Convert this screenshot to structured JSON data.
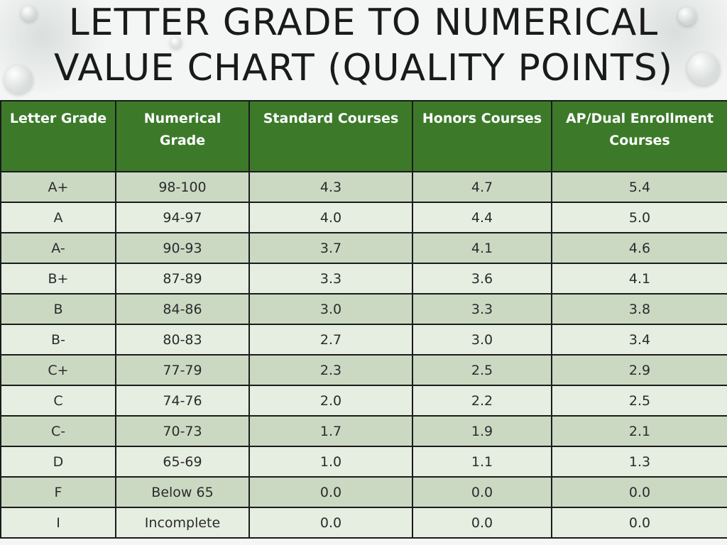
{
  "title_lines": [
    "LETTER GRADE TO NUMERICAL",
    "VALUE CHART (QUALITY POINTS)"
  ],
  "table": {
    "headers": [
      "Letter Grade",
      "Numerical Grade",
      "Standard Courses",
      "Honors Courses",
      "AP/Dual Enrollment Courses"
    ],
    "rows": [
      [
        "A+",
        "98-100",
        "4.3",
        "4.7",
        "5.4"
      ],
      [
        "A",
        "94-97",
        "4.0",
        "4.4",
        "5.0"
      ],
      [
        "A-",
        "90-93",
        "3.7",
        "4.1",
        "4.6"
      ],
      [
        "B+",
        "87-89",
        "3.3",
        "3.6",
        "4.1"
      ],
      [
        "B",
        "84-86",
        "3.0",
        "3.3",
        "3.8"
      ],
      [
        "B-",
        "80-83",
        "2.7",
        "3.0",
        "3.4"
      ],
      [
        "C+",
        "77-79",
        "2.3",
        "2.5",
        "2.9"
      ],
      [
        "C",
        "74-76",
        "2.0",
        "2.2",
        "2.5"
      ],
      [
        "C-",
        "70-73",
        "1.7",
        "1.9",
        "2.1"
      ],
      [
        "D",
        "65-69",
        "1.0",
        "1.1",
        "1.3"
      ],
      [
        "F",
        "Below 65",
        "0.0",
        "0.0",
        "0.0"
      ],
      [
        "I",
        "Incomplete",
        "0.0",
        "0.0",
        "0.0"
      ]
    ]
  },
  "colors": {
    "header_bg": "#3c7a2a",
    "row_dark": "#cbd9c3",
    "row_light": "#e6ede1"
  }
}
